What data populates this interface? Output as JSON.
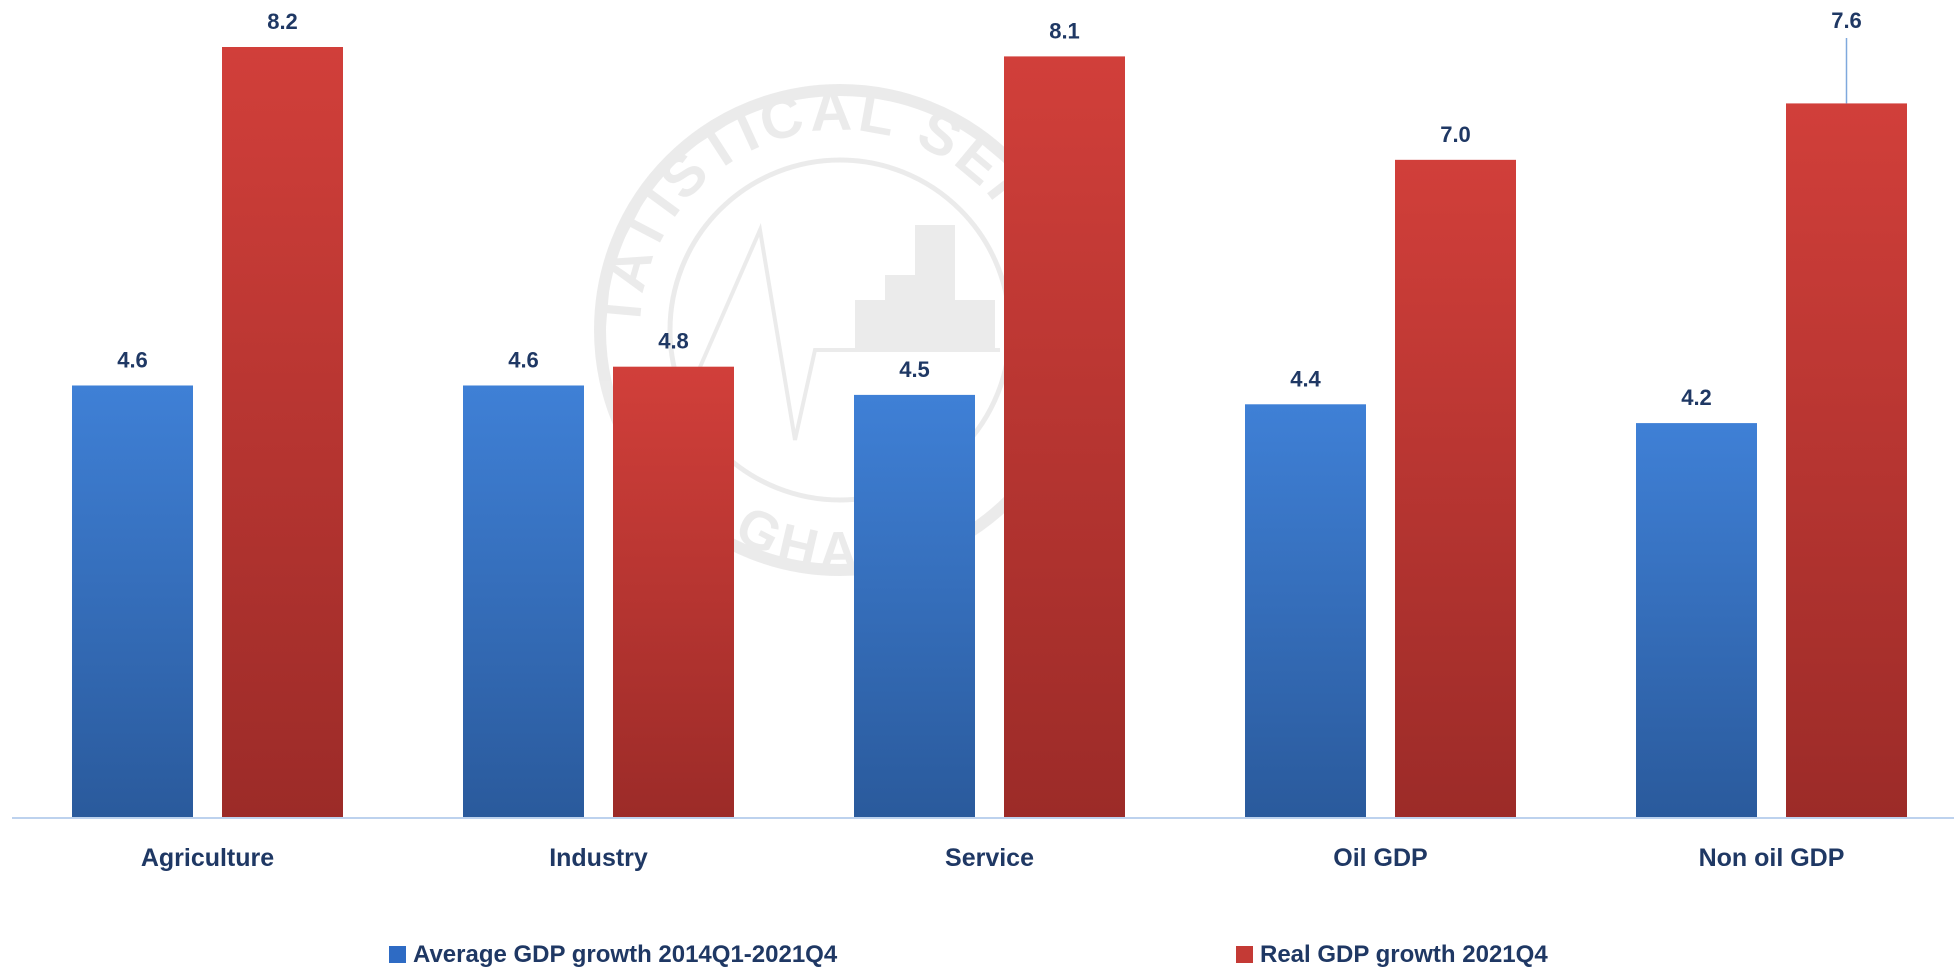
{
  "chart_data": {
    "type": "bar",
    "categories": [
      "Agriculture",
      "Industry",
      "Service",
      "Oil GDP",
      "Non oil GDP"
    ],
    "series": [
      {
        "name": "Average GDP growth 2014Q1-2021Q4",
        "values": [
          4.6,
          4.6,
          4.5,
          4.4,
          4.2
        ],
        "labels": [
          "4.6",
          "4.6",
          "4.5",
          "4.4",
          "4.2"
        ],
        "color": "#2e6bc4"
      },
      {
        "name": "Real GDP growth 2021Q4",
        "values": [
          8.2,
          4.8,
          8.1,
          7.0,
          7.6
        ],
        "labels": [
          "8.2",
          "4.8",
          "8.1",
          "7.0",
          "7.6"
        ],
        "color": "#c43a35"
      }
    ],
    "ylim": [
      0,
      8.5
    ],
    "grid": false,
    "legend_position": "bottom",
    "watermark": {
      "type": "seal",
      "text_top": "STATISTICAL SERVICE",
      "text_bottom": "GHANA"
    }
  }
}
